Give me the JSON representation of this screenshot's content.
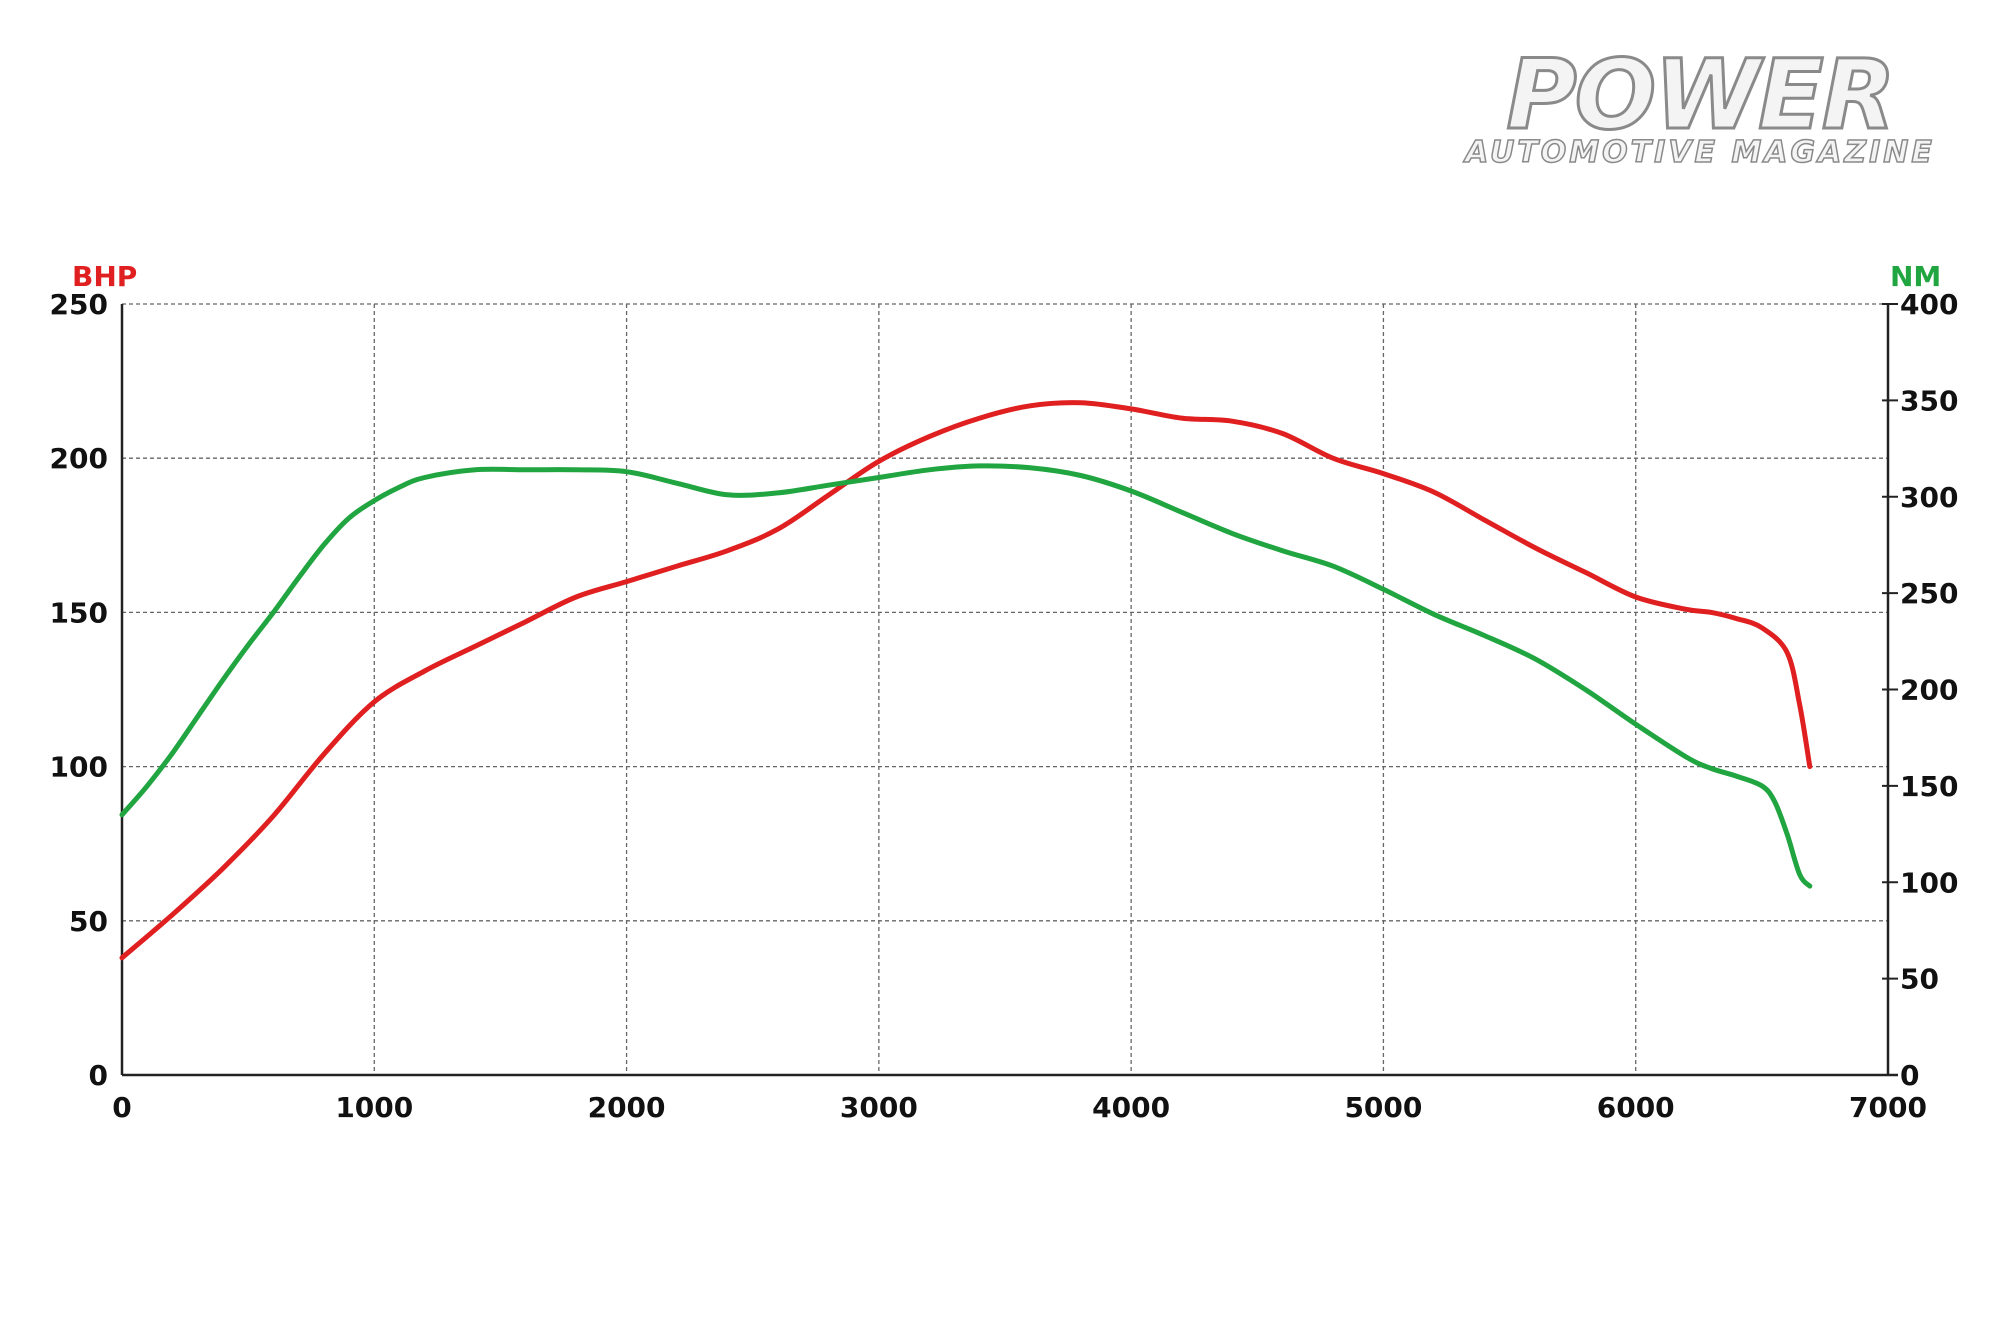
{
  "brand": {
    "name": "POWER",
    "tagline": "AUTOMOTIVE MAGAZINE"
  },
  "colors": {
    "bhp": "#e02020",
    "nm": "#20a540",
    "grid": "#666666",
    "axis": "#222222"
  },
  "chart_data": {
    "type": "line",
    "title": "",
    "xlabel": "",
    "ylabel_left": "BHP",
    "ylabel_right": "NM",
    "xlim": [
      0,
      7000
    ],
    "ylim_left": [
      0,
      250
    ],
    "ylim_right": [
      0,
      400
    ],
    "x_ticks": [
      "0",
      "1000",
      "2000",
      "3000",
      "4000",
      "5000",
      "6000",
      "7000"
    ],
    "y_ticks_left": [
      "0",
      "50",
      "100",
      "150",
      "200",
      "250"
    ],
    "y_ticks_right": [
      "0",
      "50",
      "100",
      "150",
      "200",
      "250",
      "300",
      "350",
      "400"
    ],
    "grid": true,
    "series": [
      {
        "name": "BHP",
        "axis": "left",
        "color": "#e02020",
        "x": [
          0,
          200,
          400,
          600,
          800,
          1000,
          1200,
          1400,
          1600,
          1800,
          2000,
          2200,
          2400,
          2600,
          2800,
          3000,
          3200,
          3400,
          3600,
          3800,
          4000,
          4200,
          4400,
          4600,
          4800,
          5000,
          5200,
          5400,
          5600,
          5800,
          6000,
          6200,
          6300,
          6400,
          6500,
          6600,
          6650,
          6690
        ],
        "values": [
          38,
          52,
          67,
          84,
          104,
          121,
          131,
          139,
          147,
          155,
          160,
          165,
          170,
          177,
          188,
          199,
          207,
          213,
          217,
          218,
          216,
          213,
          212,
          208,
          200,
          195,
          189,
          180,
          171,
          163,
          155,
          151,
          150,
          148,
          145,
          137,
          120,
          100
        ]
      },
      {
        "name": "NM",
        "axis": "right",
        "color": "#20a540",
        "x": [
          0,
          100,
          200,
          300,
          400,
          500,
          600,
          700,
          800,
          900,
          1000,
          1100,
          1200,
          1400,
          1600,
          1800,
          2000,
          2200,
          2400,
          2600,
          2800,
          3000,
          3200,
          3400,
          3600,
          3800,
          4000,
          4200,
          4400,
          4600,
          4800,
          5000,
          5200,
          5400,
          5600,
          5800,
          6000,
          6200,
          6300,
          6400,
          6500,
          6550,
          6600,
          6650,
          6690
        ],
        "values": [
          135,
          150,
          167,
          186,
          205,
          223,
          240,
          258,
          275,
          289,
          298,
          305,
          310,
          314,
          314,
          314,
          313,
          307,
          301,
          302,
          306,
          310,
          314,
          316,
          315,
          311,
          303,
          292,
          281,
          272,
          264,
          252,
          239,
          228,
          216,
          200,
          182,
          165,
          159,
          155,
          150,
          142,
          125,
          104,
          98
        ]
      }
    ]
  }
}
